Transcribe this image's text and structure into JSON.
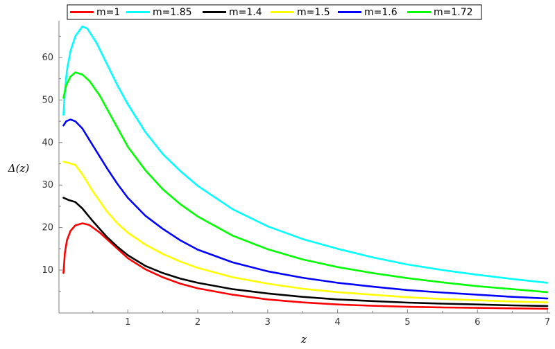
{
  "chart_data": {
    "type": "line",
    "title": "",
    "xlabel": "z",
    "ylabel": "Δ(z)",
    "xlim": [
      0.07,
      7.0
    ],
    "ylim": [
      0,
      68.5
    ],
    "grid": false,
    "legend_position": "top",
    "x_ticks": [
      1,
      2,
      3,
      4,
      5,
      6,
      7
    ],
    "y_ticks": [
      10,
      20,
      30,
      40,
      50,
      60
    ],
    "series": [
      {
        "name": "m=1",
        "color": "#ff0000",
        "points": [
          [
            0.08,
            9.3
          ],
          [
            0.1,
            14
          ],
          [
            0.13,
            17
          ],
          [
            0.18,
            19.2
          ],
          [
            0.25,
            20.5
          ],
          [
            0.35,
            21
          ],
          [
            0.45,
            20.6
          ],
          [
            0.6,
            18.8
          ],
          [
            0.8,
            15.8
          ],
          [
            1.0,
            12.8
          ],
          [
            1.25,
            10.2
          ],
          [
            1.5,
            8.3
          ],
          [
            1.75,
            6.8
          ],
          [
            2.0,
            5.7
          ],
          [
            2.5,
            4.2
          ],
          [
            3.0,
            3.1
          ],
          [
            3.5,
            2.4
          ],
          [
            4.0,
            1.9
          ],
          [
            4.5,
            1.6
          ],
          [
            5.0,
            1.35
          ],
          [
            5.5,
            1.2
          ],
          [
            6.0,
            1.1
          ],
          [
            6.5,
            1.0
          ],
          [
            7.0,
            0.9
          ]
        ]
      },
      {
        "name": "m=1.85",
        "color": "#00ffff",
        "points": [
          [
            0.08,
            46.5
          ],
          [
            0.1,
            52
          ],
          [
            0.13,
            57
          ],
          [
            0.18,
            61.5
          ],
          [
            0.25,
            65
          ],
          [
            0.35,
            67.3
          ],
          [
            0.42,
            66.8
          ],
          [
            0.55,
            63.5
          ],
          [
            0.7,
            58.5
          ],
          [
            0.85,
            53.5
          ],
          [
            1.0,
            49
          ],
          [
            1.25,
            42.5
          ],
          [
            1.5,
            37.3
          ],
          [
            1.75,
            33.3
          ],
          [
            2.0,
            29.8
          ],
          [
            2.5,
            24.3
          ],
          [
            3.0,
            20.3
          ],
          [
            3.5,
            17.3
          ],
          [
            4.0,
            15
          ],
          [
            4.5,
            13
          ],
          [
            5.0,
            11.3
          ],
          [
            5.5,
            10
          ],
          [
            6.0,
            8.9
          ],
          [
            6.5,
            7.9
          ],
          [
            7.0,
            7.0
          ]
        ]
      },
      {
        "name": "m=1.4",
        "color": "#000000",
        "points": [
          [
            0.08,
            27
          ],
          [
            0.15,
            26.5
          ],
          [
            0.25,
            26
          ],
          [
            0.35,
            24.5
          ],
          [
            0.5,
            21.5
          ],
          [
            0.7,
            17.8
          ],
          [
            0.85,
            15.5
          ],
          [
            1.0,
            13.5
          ],
          [
            1.25,
            11
          ],
          [
            1.5,
            9.3
          ],
          [
            1.75,
            8
          ],
          [
            2.0,
            7
          ],
          [
            2.5,
            5.5
          ],
          [
            3.0,
            4.5
          ],
          [
            3.5,
            3.7
          ],
          [
            4.0,
            3.1
          ],
          [
            4.5,
            2.7
          ],
          [
            5.0,
            2.35
          ],
          [
            5.5,
            2.1
          ],
          [
            6.0,
            1.9
          ],
          [
            6.5,
            1.7
          ],
          [
            7.0,
            1.55
          ]
        ]
      },
      {
        "name": "m=1.5",
        "color": "#ffff00",
        "points": [
          [
            0.08,
            35.5
          ],
          [
            0.15,
            35.2
          ],
          [
            0.25,
            34.7
          ],
          [
            0.35,
            32.5
          ],
          [
            0.5,
            28.5
          ],
          [
            0.7,
            23.8
          ],
          [
            0.85,
            21
          ],
          [
            1.0,
            18.8
          ],
          [
            1.25,
            16
          ],
          [
            1.5,
            13.8
          ],
          [
            1.75,
            12
          ],
          [
            2.0,
            10.5
          ],
          [
            2.5,
            8.3
          ],
          [
            3.0,
            6.8
          ],
          [
            3.5,
            5.6
          ],
          [
            4.0,
            4.8
          ],
          [
            4.5,
            4.2
          ],
          [
            5.0,
            3.6
          ],
          [
            5.5,
            3.2
          ],
          [
            6.0,
            2.9
          ],
          [
            6.5,
            2.6
          ],
          [
            7.0,
            2.4
          ]
        ]
      },
      {
        "name": "m=1.6",
        "color": "#0000ff",
        "points": [
          [
            0.08,
            44
          ],
          [
            0.12,
            45
          ],
          [
            0.18,
            45.4
          ],
          [
            0.25,
            45
          ],
          [
            0.35,
            43.3
          ],
          [
            0.5,
            39.3
          ],
          [
            0.7,
            34
          ],
          [
            0.85,
            30.3
          ],
          [
            1.0,
            27
          ],
          [
            1.25,
            22.8
          ],
          [
            1.5,
            19.7
          ],
          [
            1.75,
            17
          ],
          [
            2.0,
            14.8
          ],
          [
            2.5,
            11.8
          ],
          [
            3.0,
            9.7
          ],
          [
            3.5,
            8.2
          ],
          [
            4.0,
            7
          ],
          [
            4.5,
            6.1
          ],
          [
            5.0,
            5.3
          ],
          [
            5.5,
            4.7
          ],
          [
            6.0,
            4.2
          ],
          [
            6.5,
            3.7
          ],
          [
            7.0,
            3.3
          ]
        ]
      },
      {
        "name": "m=1.72",
        "color": "#00ff00",
        "points": [
          [
            0.08,
            50.5
          ],
          [
            0.12,
            53.5
          ],
          [
            0.18,
            55.5
          ],
          [
            0.25,
            56.5
          ],
          [
            0.35,
            56
          ],
          [
            0.45,
            54.5
          ],
          [
            0.6,
            51
          ],
          [
            0.75,
            46.5
          ],
          [
            0.9,
            42
          ],
          [
            1.0,
            39
          ],
          [
            1.25,
            33.5
          ],
          [
            1.5,
            29
          ],
          [
            1.75,
            25.5
          ],
          [
            2.0,
            22.6
          ],
          [
            2.5,
            18.1
          ],
          [
            3.0,
            14.9
          ],
          [
            3.5,
            12.5
          ],
          [
            4.0,
            10.7
          ],
          [
            4.5,
            9.3
          ],
          [
            5.0,
            8.1
          ],
          [
            5.5,
            7.1
          ],
          [
            6.0,
            6.2
          ],
          [
            6.5,
            5.5
          ],
          [
            7.0,
            4.8
          ]
        ]
      }
    ]
  }
}
